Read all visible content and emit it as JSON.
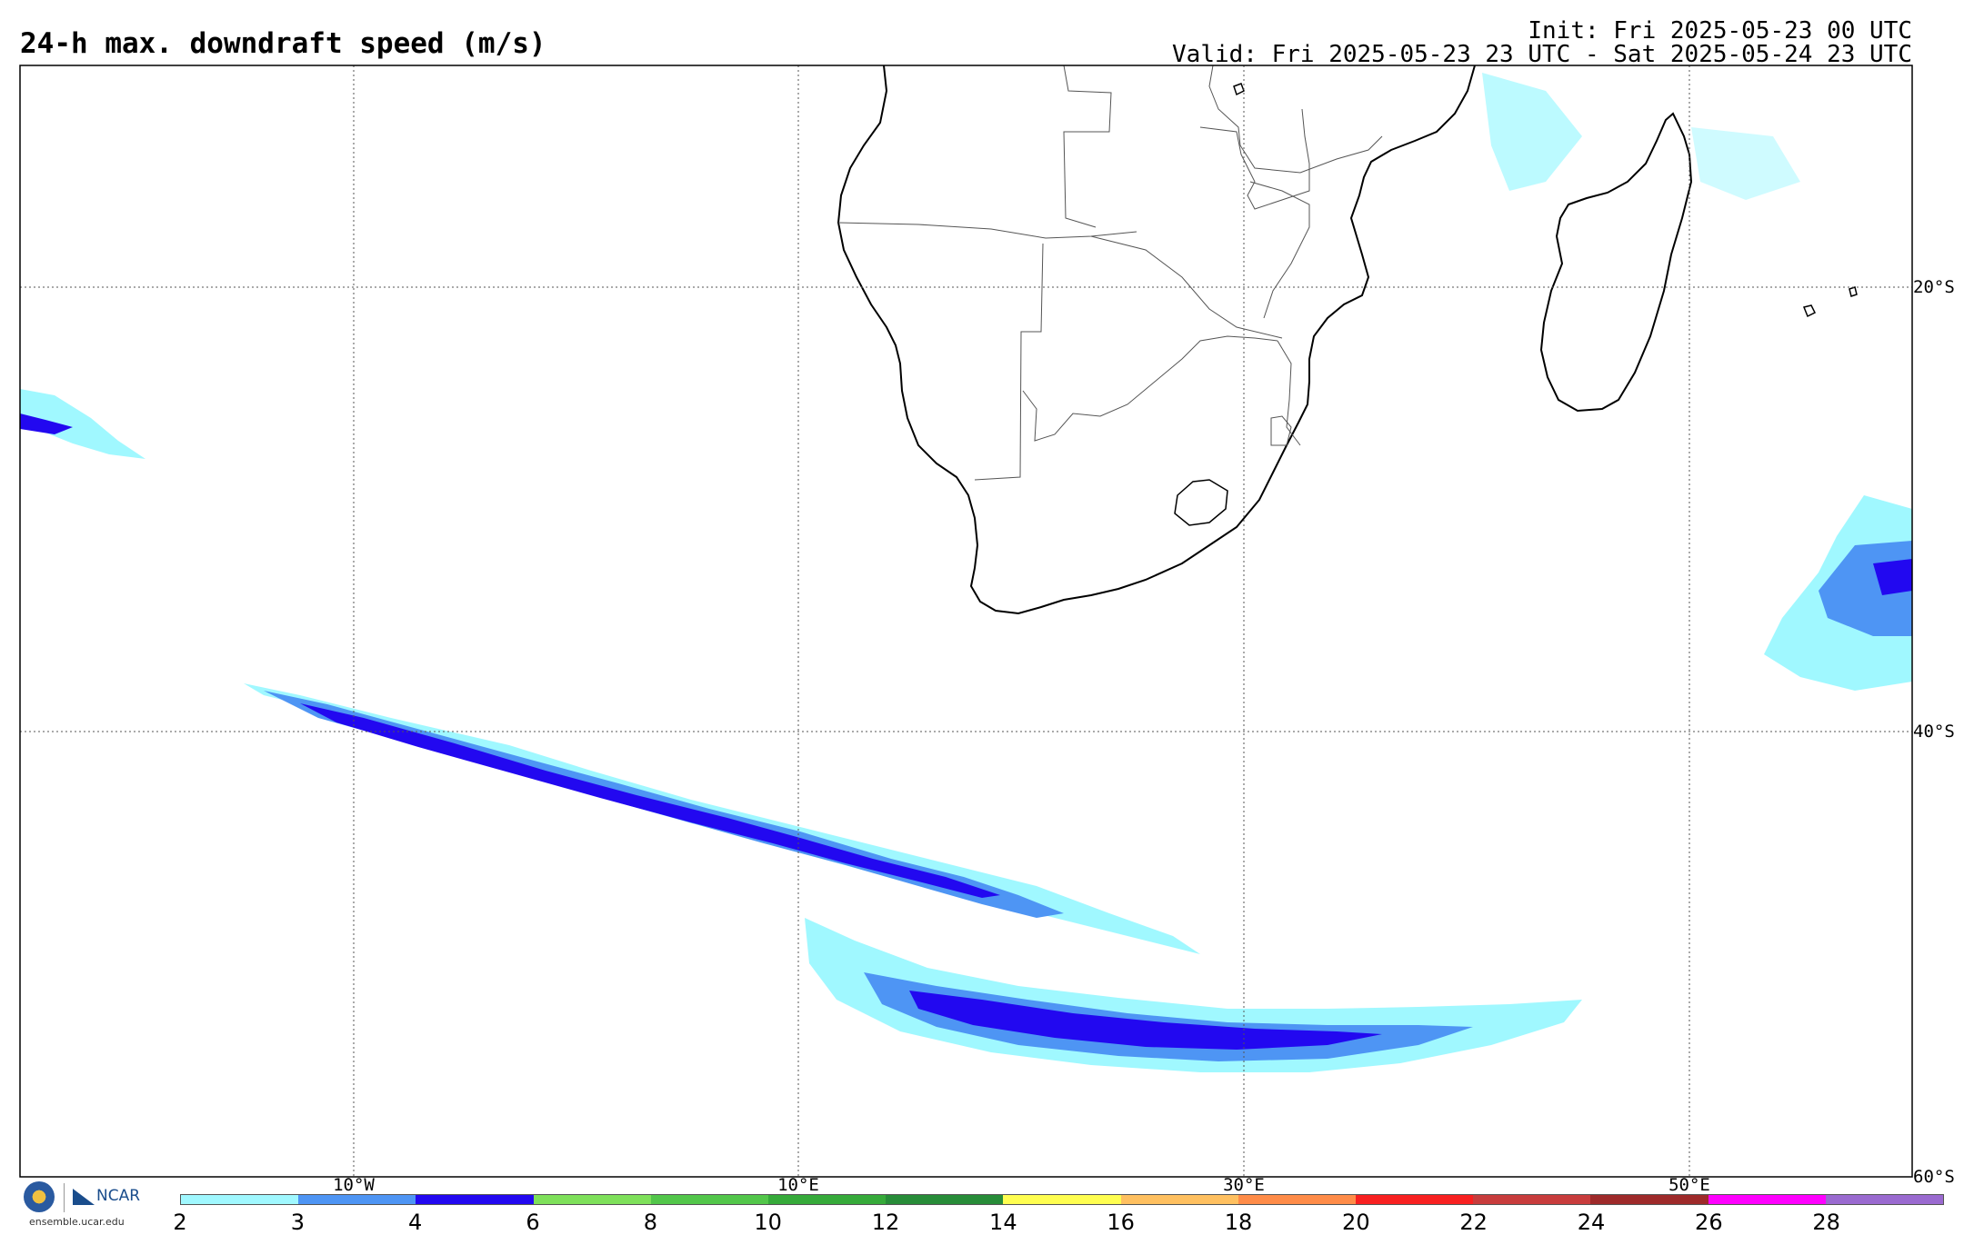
{
  "header": {
    "title": "24-h max. downdraft speed (m/s)",
    "init": "Init: Fri 2025-05-23 00 UTC",
    "valid": "Valid: Fri 2025-05-23 23 UTC - Sat 2025-05-24 23 UTC"
  },
  "map": {
    "lon_range": [
      -25,
      60
    ],
    "lat_range": [
      -60,
      -10
    ],
    "lon_labels": [
      "10°W",
      "10°E",
      "30°E",
      "50°E"
    ],
    "lat_labels": [
      "20°S",
      "40°S",
      "60°S"
    ],
    "ocean_color": "#ffffff",
    "coast_color": "#000000",
    "border_color": "#555555"
  },
  "colorbar": {
    "ticks": [
      "2",
      "3",
      "4",
      "6",
      "8",
      "10",
      "12",
      "14",
      "16",
      "18",
      "20",
      "22",
      "24",
      "26",
      "28"
    ],
    "colors": [
      "#a0f8ff",
      "#4e95f4",
      "#2208f0",
      "#7ee05a",
      "#52c64a",
      "#36aa3a",
      "#278c38",
      "#fffe50",
      "#ffc060",
      "#ff8c48",
      "#f82020",
      "#c83c3c",
      "#9e2a2a",
      "#ff00ff",
      "#9a6ad0"
    ]
  },
  "logos": {
    "nsf": "NSF",
    "ncar": "NCAR",
    "site": "ensemble.ucar.edu"
  }
}
